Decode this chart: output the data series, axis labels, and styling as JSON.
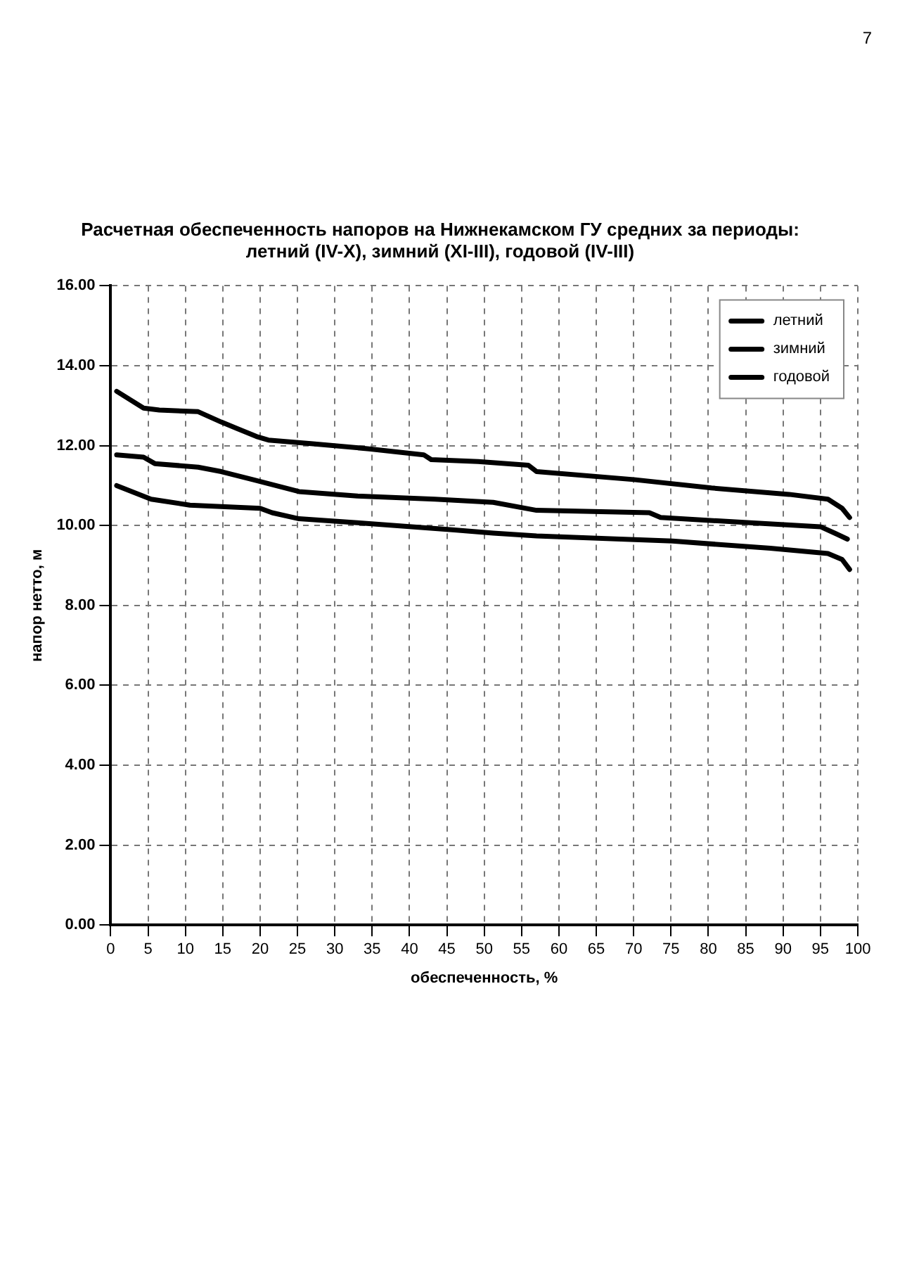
{
  "chart_data": {
    "type": "line",
    "title": "Расчетная обеспеченность напоров на Нижнекамском ГУ средних за периоды: летний (IV-X), зимний (XI-III), годовой (IV-III)",
    "xlabel": "обеспеченность, %",
    "ylabel": "напор нетто, м",
    "xlim": [
      0,
      100
    ],
    "xticks": [
      0,
      5,
      10,
      15,
      20,
      25,
      30,
      35,
      40,
      45,
      50,
      55,
      60,
      65,
      70,
      75,
      80,
      85,
      90,
      95,
      100
    ],
    "ylim": [
      0,
      16
    ],
    "yticks": [
      {
        "value": 0,
        "label": "0.00"
      },
      {
        "value": 2,
        "label": "2.00"
      },
      {
        "value": 4,
        "label": "4.00"
      },
      {
        "value": 6,
        "label": "6.00"
      },
      {
        "value": 8,
        "label": "8.00"
      },
      {
        "value": 10,
        "label": "10.00"
      },
      {
        "value": 12,
        "label": "12.00"
      },
      {
        "value": 14,
        "label": "14.00"
      },
      {
        "value": 16,
        "label": "16.00"
      }
    ],
    "grid": true,
    "legend": "top right",
    "marker": "none",
    "line_style": "solid",
    "annotations": [
      "7"
    ],
    "series": [
      {
        "name": "летний",
        "color": "#000000",
        "x": [
          0.8,
          4.4,
          6.5,
          11.7,
          14.8,
          16.9,
          19.5,
          21.1,
          26.8,
          34.6,
          41.9,
          42.9,
          49.2,
          55.9,
          57,
          70,
          80.4,
          90.8,
          96,
          97.9,
          98.9
        ],
        "values": [
          13.36,
          12.94,
          12.89,
          12.85,
          12.59,
          12.43,
          12.23,
          12.14,
          12.05,
          11.92,
          11.77,
          11.65,
          11.6,
          11.51,
          11.35,
          11.15,
          10.94,
          10.78,
          10.66,
          10.43,
          10.2
        ]
      },
      {
        "name": "зимний",
        "color": "#000000",
        "x": [
          0.8,
          4.4,
          5.9,
          11.7,
          14.8,
          19,
          21.1,
          25.2,
          33,
          43.4,
          51.2,
          57,
          72.1,
          73.6,
          85.6,
          95,
          96.9,
          98.6
        ],
        "values": [
          11.77,
          11.71,
          11.55,
          11.46,
          11.35,
          11.15,
          11.05,
          10.85,
          10.74,
          10.66,
          10.58,
          10.38,
          10.32,
          10.2,
          10.07,
          9.97,
          9.81,
          9.66
        ]
      },
      {
        "name": "годовой",
        "color": "#000000",
        "x": [
          0.8,
          5.4,
          10.6,
          20,
          21.6,
          25.2,
          33,
          46,
          51.2,
          57,
          75.2,
          88.3,
          96,
          97.9,
          98.9
        ],
        "values": [
          11,
          10.66,
          10.51,
          10.43,
          10.32,
          10.17,
          10.07,
          9.89,
          9.81,
          9.74,
          9.61,
          9.43,
          9.3,
          9.15,
          8.9
        ]
      }
    ]
  }
}
